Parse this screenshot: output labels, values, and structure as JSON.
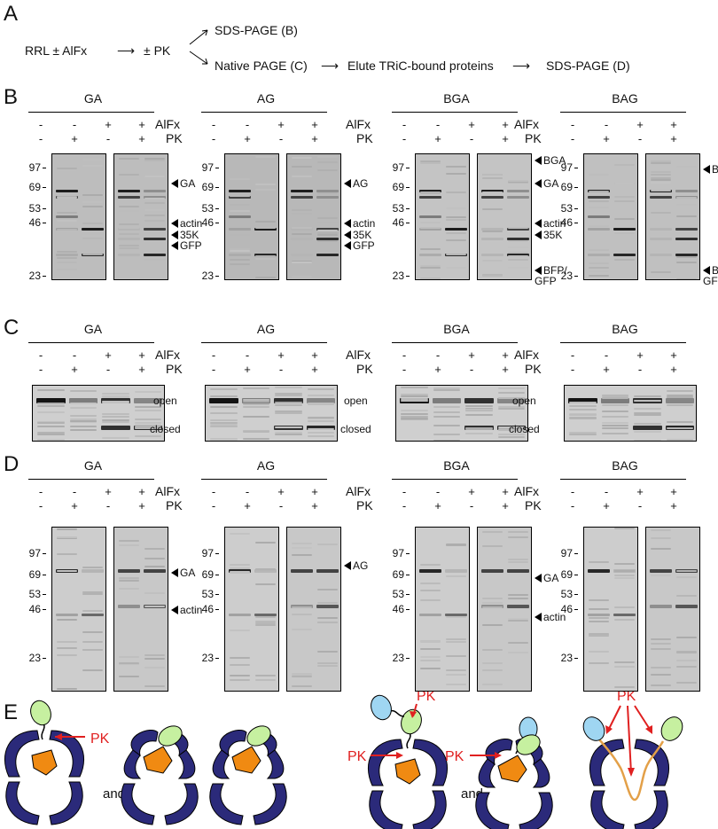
{
  "panels": {
    "A": "A",
    "B": "B",
    "C": "C",
    "D": "D",
    "E": "E"
  },
  "scheme": {
    "rrl": "RRL ± AlFx",
    "arrow1": "⟶",
    "pk": "± PK",
    "sds_b": "SDS-PAGE (B)",
    "native_c": "Native PAGE (C)",
    "arrow2": "⟶",
    "elute": "Elute TRiC-bound proteins",
    "arrow3": "⟶",
    "sds_d": "SDS-PAGE (D)"
  },
  "constructs": [
    "GA",
    "AG",
    "BGA",
    "BAG"
  ],
  "treatment_labels": {
    "alfx": "AlFx",
    "pk": "PK"
  },
  "signs": {
    "alfx": [
      "-",
      "-",
      "+",
      "+"
    ],
    "pk": [
      "-",
      "+",
      "-",
      "+"
    ]
  },
  "mw_markers": [
    "97",
    "69",
    "53",
    "46",
    "23"
  ],
  "panel_b_arrows": {
    "GA": [
      "GA",
      "actin",
      "35K",
      "GFP"
    ],
    "AG": [
      "AG",
      "actin",
      "35K",
      "GFP"
    ],
    "BGA": [
      "BGA",
      "GA",
      "actin",
      "35K",
      "BFP/\nGFP"
    ],
    "BAG": [
      "BAG",
      "BFP/\nGFP"
    ]
  },
  "panel_c_labels": {
    "open": "open",
    "closed": "closed"
  },
  "panel_d_arrows": {
    "GA": [
      "GA",
      "actin"
    ],
    "AG": [
      "AG"
    ],
    "BGA": [
      "GA",
      "actin"
    ]
  },
  "panel_e": {
    "pk": "PK",
    "and": "and"
  },
  "colors": {
    "chaperonin": "#2b2a7a",
    "substrate": "#f08a12",
    "gfp": "#c6f0a0",
    "bfp": "#9fd6f2",
    "pk_arrow": "#e02020",
    "linker": "#e3a048"
  }
}
